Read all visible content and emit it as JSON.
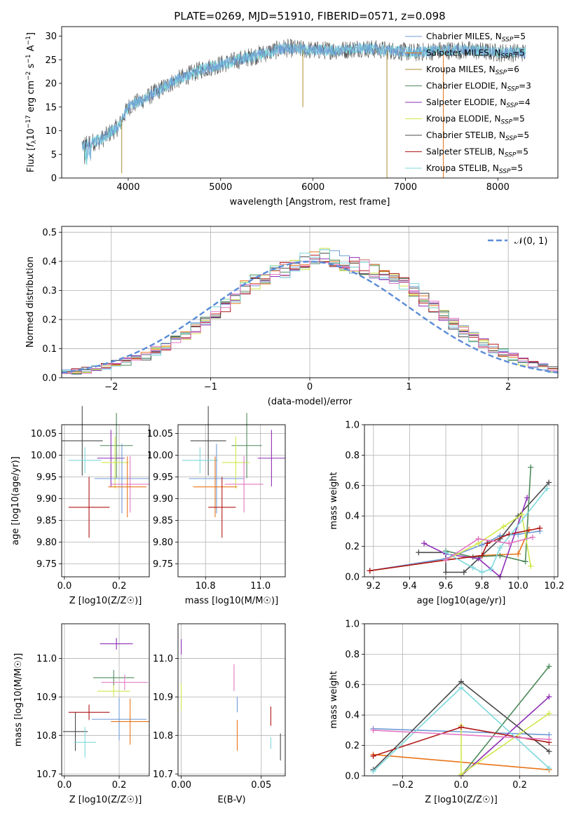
{
  "figure_title": "PLATE=0269, MJD=51910, FIBERID=0571, z=0.098",
  "colors": {
    "Chabrier MILES": "#6f9bd6",
    "Salpeter MILES": "#e8751a",
    "Kroupa MILES": "#ab8f30",
    "Chabrier ELODIE": "#4f8a5b",
    "Salpeter ELODIE": "#8e2fb5",
    "Kroupa ELODIE": "#cfe84a",
    "Chabrier STELIB": "#4a4a4a",
    "Salpeter STELIB": "#b01818",
    "Kroupa STELIB": "#7fd8dc",
    "Extra pink": "#e377c2",
    "Gaussian": "#5b8bd8"
  },
  "chart_data": [
    {
      "id": "spectrum",
      "type": "line",
      "title": "PLATE=0269, MJD=51910, FIBERID=0571, z=0.098",
      "xlabel": "wavelength [Angstrom, rest frame]",
      "ylabel": "Flux [f_λ 10^-17 erg cm^-2 s^-1 A^-1]",
      "xlim": [
        3280,
        8650
      ],
      "ylim": [
        0,
        32
      ],
      "xticks": [
        "4000",
        "5000",
        "6000",
        "7000",
        "8000"
      ],
      "yticks": [
        "0",
        "5",
        "10",
        "15",
        "20",
        "25",
        "30"
      ],
      "grid": false,
      "legend_position": "top-right",
      "legend": [
        {
          "name": "Chabrier MILES",
          "sub": "N",
          "subscript": "SSP",
          "tail": "=5"
        },
        {
          "name": "Salpeter MILES",
          "sub": "N",
          "subscript": "SSP",
          "tail": "=5"
        },
        {
          "name": "Kroupa MILES",
          "sub": "N",
          "subscript": "SSP",
          "tail": "=6"
        },
        {
          "name": "Chabrier ELODIE",
          "sub": "N",
          "subscript": "SSP",
          "tail": "=3"
        },
        {
          "name": "Salpeter ELODIE",
          "sub": "N",
          "subscript": "SSP",
          "tail": "=4"
        },
        {
          "name": "Kroupa ELODIE",
          "sub": "N",
          "subscript": "SSP",
          "tail": "=5"
        },
        {
          "name": "Chabrier STELIB",
          "sub": "N",
          "subscript": "SSP",
          "tail": "=5"
        },
        {
          "name": "Salpeter STELIB",
          "sub": "N",
          "subscript": "SSP",
          "tail": "=5"
        },
        {
          "name": "Kroupa STELIB",
          "sub": "N",
          "subscript": "SSP",
          "tail": "=5"
        }
      ],
      "continuum": [
        [
          3500,
          7
        ],
        [
          3700,
          8
        ],
        [
          3900,
          11
        ],
        [
          4000,
          15
        ],
        [
          4200,
          17
        ],
        [
          4500,
          20.5
        ],
        [
          4800,
          23
        ],
        [
          5100,
          24.5
        ],
        [
          5400,
          26
        ],
        [
          5700,
          27.5
        ],
        [
          6000,
          27
        ],
        [
          6300,
          27
        ],
        [
          6500,
          27.5
        ],
        [
          6800,
          27
        ],
        [
          7100,
          26.5
        ],
        [
          7400,
          27
        ],
        [
          7700,
          27
        ],
        [
          8000,
          26.5
        ],
        [
          8300,
          26.5
        ]
      ],
      "series_names": [
        "Chabrier MILES",
        "Kroupa STELIB",
        "Chabrier STELIB"
      ],
      "spikes": [
        {
          "x": 5890,
          "y": 15
        },
        {
          "x": 6800,
          "y": 0
        },
        {
          "x": 7410,
          "y": 0
        },
        {
          "x": 3930,
          "y": 1
        }
      ]
    },
    {
      "id": "residuals",
      "type": "bar",
      "xlabel": "(data-model)/error",
      "ylabel": "Normed distribution",
      "xlim": [
        -2.5,
        2.5
      ],
      "ylim": [
        0,
        0.52
      ],
      "xticks": [
        "−2",
        "−1",
        "0",
        "1",
        "2"
      ],
      "yticks": [
        "0.0",
        "0.1",
        "0.2",
        "0.3",
        "0.4",
        "0.5"
      ],
      "grid": true,
      "legend_position": "top-right",
      "legend_label": "𝒩(0, 1)",
      "bin_width": 0.1,
      "bin_start": -2.5,
      "base_values": [
        0.018,
        0.022,
        0.026,
        0.032,
        0.04,
        0.048,
        0.056,
        0.064,
        0.075,
        0.092,
        0.112,
        0.13,
        0.15,
        0.17,
        0.2,
        0.225,
        0.25,
        0.28,
        0.31,
        0.33,
        0.345,
        0.36,
        0.37,
        0.385,
        0.4,
        0.41,
        0.42,
        0.41,
        0.395,
        0.385,
        0.38,
        0.37,
        0.355,
        0.34,
        0.32,
        0.3,
        0.27,
        0.24,
        0.21,
        0.185,
        0.16,
        0.14,
        0.12,
        0.1,
        0.085,
        0.07,
        0.056,
        0.046,
        0.036,
        0.028
      ]
    },
    {
      "id": "age-vs-Z",
      "type": "scatter",
      "xlabel": "Z [log10(Z/Z☉)]",
      "ylabel": "age [log10(age/yr)]",
      "xlim": [
        -0.01,
        0.31
      ],
      "ylim": [
        9.72,
        10.07
      ],
      "xticks": [
        "0.0",
        "0.2"
      ],
      "yticks": [
        "9.75",
        "9.80",
        "9.85",
        "9.90",
        "9.95",
        "10.00",
        "10.05"
      ],
      "grid": true,
      "points": [
        {
          "x": 0.065,
          "xerr": 0.075,
          "y": 10.033,
          "yerr": 0.16,
          "color": "#4a4a4a"
        },
        {
          "x": 0.075,
          "xerr": 0.06,
          "y": 9.988,
          "yerr": 0.06,
          "color": "#7fd8dc"
        },
        {
          "x": 0.19,
          "xerr": 0.06,
          "y": 10.022,
          "yerr": 0.15,
          "color": "#4f8a5b"
        },
        {
          "x": 0.17,
          "xerr": 0.05,
          "y": 9.993,
          "yerr": 0.13,
          "color": "#8e2fb5"
        },
        {
          "x": 0.185,
          "xerr": 0.05,
          "y": 9.983,
          "yerr": 0.12,
          "color": "#cfe84a"
        },
        {
          "x": 0.21,
          "xerr": 0.1,
          "y": 9.946,
          "yerr": 0.16,
          "color": "#6f9bd6"
        },
        {
          "x": 0.24,
          "xerr": 0.07,
          "y": 9.933,
          "yerr": 0.13,
          "color": "#e377c2"
        },
        {
          "x": 0.23,
          "xerr": 0.07,
          "y": 9.927,
          "yerr": 0.14,
          "color": "#e8751a"
        },
        {
          "x": 0.09,
          "xerr": 0.075,
          "y": 9.88,
          "yerr": 0.14,
          "color": "#b01818"
        }
      ]
    },
    {
      "id": "age-vs-mass",
      "type": "scatter",
      "xlabel": "mass [log10(M/M☉)]",
      "ylabel": "",
      "xlim": [
        10.7,
        11.09
      ],
      "ylim": [
        9.72,
        10.07
      ],
      "xticks": [
        "10.8",
        "11.0"
      ],
      "yticks": [
        "9.75",
        "9.80",
        "9.85",
        "9.90",
        "9.95",
        "10.00",
        "10.05"
      ],
      "grid": true,
      "points": [
        {
          "x": 10.81,
          "xerr": 0.065,
          "y": 10.033,
          "yerr": 0.16,
          "color": "#4a4a4a"
        },
        {
          "x": 10.78,
          "xerr": 0.065,
          "y": 9.988,
          "yerr": 0.06,
          "color": "#7fd8dc"
        },
        {
          "x": 10.95,
          "xerr": 0.055,
          "y": 10.022,
          "yerr": 0.15,
          "color": "#4f8a5b"
        },
        {
          "x": 11.04,
          "xerr": 0.05,
          "y": 9.993,
          "yerr": 0.13,
          "color": "#8e2fb5"
        },
        {
          "x": 10.91,
          "xerr": 0.05,
          "y": 9.983,
          "yerr": 0.12,
          "color": "#cfe84a"
        },
        {
          "x": 10.84,
          "xerr": 0.1,
          "y": 9.946,
          "yerr": 0.16,
          "color": "#6f9bd6"
        },
        {
          "x": 10.94,
          "xerr": 0.07,
          "y": 9.933,
          "yerr": 0.13,
          "color": "#e377c2"
        },
        {
          "x": 10.835,
          "xerr": 0.08,
          "y": 9.927,
          "yerr": 0.14,
          "color": "#e8751a"
        },
        {
          "x": 10.86,
          "xerr": 0.05,
          "y": 9.88,
          "yerr": 0.14,
          "color": "#b01818"
        }
      ]
    },
    {
      "id": "mass-weight-vs-age",
      "type": "line",
      "xlabel": "age [log10(age/yr)]",
      "ylabel": "mass weight",
      "xlim": [
        9.15,
        10.22
      ],
      "ylim": [
        0,
        1.0
      ],
      "xticks": [
        "9.2",
        "9.4",
        "9.6",
        "9.8",
        "10.0",
        "10.2"
      ],
      "yticks": [
        "0.0",
        "0.2",
        "0.4",
        "0.6",
        "0.8",
        "1.0"
      ],
      "grid": true,
      "series": [
        {
          "color": "#e8751a",
          "points": [
            [
              9.18,
              0.04
            ],
            [
              9.6,
              0.11
            ],
            [
              9.8,
              0.14
            ],
            [
              10.0,
              0.15
            ],
            [
              10.06,
              0.31
            ]
          ]
        },
        {
          "color": "#6f9bd6",
          "points": [
            [
              9.18,
              0.04
            ],
            [
              9.6,
              0.12
            ],
            [
              9.8,
              0.21
            ],
            [
              9.9,
              0.27
            ],
            [
              10.0,
              0.28
            ],
            [
              10.12,
              0.3
            ]
          ]
        },
        {
          "color": "#4a4a4a",
          "points": [
            [
              9.45,
              0.16
            ],
            [
              9.6,
              0.16
            ],
            [
              9.6,
              0.03
            ],
            [
              9.7,
              0.03
            ],
            [
              9.9,
              0.25
            ],
            [
              10.0,
              0.4
            ],
            [
              10.17,
              0.62
            ]
          ]
        },
        {
          "color": "#4f8a5b",
          "points": [
            [
              9.6,
              0.17
            ],
            [
              9.75,
              0.13
            ],
            [
              9.9,
              0.14
            ],
            [
              10.04,
              0.1
            ],
            [
              10.07,
              0.72
            ]
          ]
        },
        {
          "color": "#8e2fb5",
          "points": [
            [
              9.48,
              0.22
            ],
            [
              9.6,
              0.15
            ],
            [
              9.78,
              0.12
            ],
            [
              9.9,
              0.0
            ],
            [
              10.05,
              0.52
            ]
          ]
        },
        {
          "color": "#cfe84a",
          "points": [
            [
              9.6,
              0.11
            ],
            [
              9.78,
              0.22
            ],
            [
              9.92,
              0.33
            ],
            [
              10.02,
              0.41
            ],
            [
              10.07,
              0.07
            ]
          ]
        },
        {
          "color": "#b01818",
          "points": [
            [
              9.18,
              0.04
            ],
            [
              9.6,
              0.11
            ],
            [
              9.8,
              0.14
            ],
            [
              9.83,
              0.22
            ],
            [
              9.95,
              0.28
            ],
            [
              10.12,
              0.32
            ]
          ]
        },
        {
          "color": "#7fd8dc",
          "points": [
            [
              9.6,
              0.16
            ],
            [
              9.75,
              0.06
            ],
            [
              9.8,
              0.03
            ],
            [
              9.85,
              0.05
            ],
            [
              9.9,
              0.19
            ],
            [
              10.16,
              0.58
            ]
          ]
        },
        {
          "color": "#e377c2",
          "points": [
            [
              9.6,
              0.11
            ],
            [
              9.78,
              0.25
            ],
            [
              9.95,
              0.22
            ],
            [
              10.08,
              0.26
            ]
          ]
        }
      ]
    },
    {
      "id": "mass-vs-Z",
      "type": "scatter",
      "xlabel": "Z [log10(Z/Z☉)]",
      "ylabel": "mass [log10(M/M☉)]",
      "xlim": [
        -0.01,
        0.31
      ],
      "ylim": [
        10.695,
        11.09
      ],
      "xticks": [
        "0.0",
        "0.2"
      ],
      "yticks": [
        "10.7",
        "10.8",
        "10.9",
        "11.0"
      ],
      "grid": true,
      "points": [
        {
          "x": 0.19,
          "xerr": 0.06,
          "y": 11.038,
          "yerr": 0.03,
          "color": "#8e2fb5"
        },
        {
          "x": 0.18,
          "xerr": 0.075,
          "y": 10.95,
          "yerr": 0.04,
          "color": "#4f8a5b"
        },
        {
          "x": 0.22,
          "xerr": 0.085,
          "y": 10.938,
          "yerr": 0.04,
          "color": "#e377c2"
        },
        {
          "x": 0.18,
          "xerr": 0.06,
          "y": 10.915,
          "yerr": 0.03,
          "color": "#cfe84a"
        },
        {
          "x": 0.09,
          "xerr": 0.075,
          "y": 10.86,
          "yerr": 0.04,
          "color": "#b01818"
        },
        {
          "x": 0.2,
          "xerr": 0.1,
          "y": 10.842,
          "yerr": 0.11,
          "color": "#6f9bd6"
        },
        {
          "x": 0.24,
          "xerr": 0.07,
          "y": 10.836,
          "yerr": 0.12,
          "color": "#e8751a"
        },
        {
          "x": 0.04,
          "xerr": 0.045,
          "y": 10.81,
          "yerr": 0.1,
          "color": "#4a4a4a"
        },
        {
          "x": 0.075,
          "xerr": 0.04,
          "y": 10.782,
          "yerr": 0.08,
          "color": "#7fd8dc"
        }
      ]
    },
    {
      "id": "mass-vs-EBV",
      "type": "scatter",
      "xlabel": "E(B-V)",
      "ylabel": "",
      "xlim": [
        -0.002,
        0.065
      ],
      "ylim": [
        10.695,
        11.09
      ],
      "xticks": [
        "0.00",
        "0.05"
      ],
      "yticks": [
        "10.7",
        "10.8",
        "10.9",
        "11.0"
      ],
      "grid": true,
      "points": [
        {
          "x": 0.0,
          "y": 11.03,
          "yerr": 0.04,
          "color": "#8e2fb5"
        },
        {
          "x": 0.0,
          "y": 10.9,
          "yerr": 0.07,
          "color": "#cfe84a"
        },
        {
          "x": 0.033,
          "y": 10.95,
          "yerr": 0.07,
          "color": "#e377c2"
        },
        {
          "x": 0.035,
          "y": 10.88,
          "yerr": 0.04,
          "color": "#6f9bd6"
        },
        {
          "x": 0.035,
          "y": 10.8,
          "yerr": 0.08,
          "color": "#e8751a"
        },
        {
          "x": 0.056,
          "y": 10.85,
          "yerr": 0.05,
          "color": "#b01818"
        },
        {
          "x": 0.056,
          "y": 10.78,
          "yerr": 0.03,
          "color": "#7fd8dc"
        },
        {
          "x": 0.062,
          "y": 10.77,
          "yerr": 0.07,
          "color": "#4a4a4a"
        }
      ]
    },
    {
      "id": "mass-weight-vs-Z",
      "type": "line",
      "xlabel": "Z [log10(Z/Z☉)]",
      "ylabel": "mass weight",
      "xlim": [
        -0.33,
        0.33
      ],
      "ylim": [
        0,
        1.0
      ],
      "xticks": [
        "−0.2",
        "0.0",
        "0.2"
      ],
      "yticks": [
        "0.0",
        "0.2",
        "0.4",
        "0.6",
        "0.8",
        "1.0"
      ],
      "grid": true,
      "series": [
        {
          "color": "#e8751a",
          "points": [
            [
              -0.3,
              0.14
            ],
            [
              0.3,
              0.04
            ]
          ]
        },
        {
          "color": "#6f9bd6",
          "points": [
            [
              -0.3,
              0.31
            ],
            [
              0.3,
              0.27
            ]
          ]
        },
        {
          "color": "#4a4a4a",
          "points": [
            [
              -0.3,
              0.04
            ],
            [
              0.0,
              0.62
            ],
            [
              0.3,
              0.16
            ]
          ]
        },
        {
          "color": "#4f8a5b",
          "points": [
            [
              0.0,
              0.0
            ],
            [
              0.3,
              0.72
            ]
          ]
        },
        {
          "color": "#8e2fb5",
          "points": [
            [
              0.0,
              0.0
            ],
            [
              0.3,
              0.52
            ]
          ]
        },
        {
          "color": "#cfe84a",
          "points": [
            [
              0.0,
              0.33
            ],
            [
              0.0,
              0.01
            ],
            [
              0.3,
              0.41
            ]
          ]
        },
        {
          "color": "#b01818",
          "points": [
            [
              -0.3,
              0.13
            ],
            [
              0.0,
              0.32
            ],
            [
              0.3,
              0.22
            ]
          ]
        },
        {
          "color": "#7fd8dc",
          "points": [
            [
              -0.3,
              0.03
            ],
            [
              0.0,
              0.58
            ],
            [
              0.3,
              0.05
            ]
          ]
        },
        {
          "color": "#e377c2",
          "points": [
            [
              -0.3,
              0.3
            ],
            [
              0.3,
              0.24
            ]
          ]
        }
      ]
    }
  ]
}
